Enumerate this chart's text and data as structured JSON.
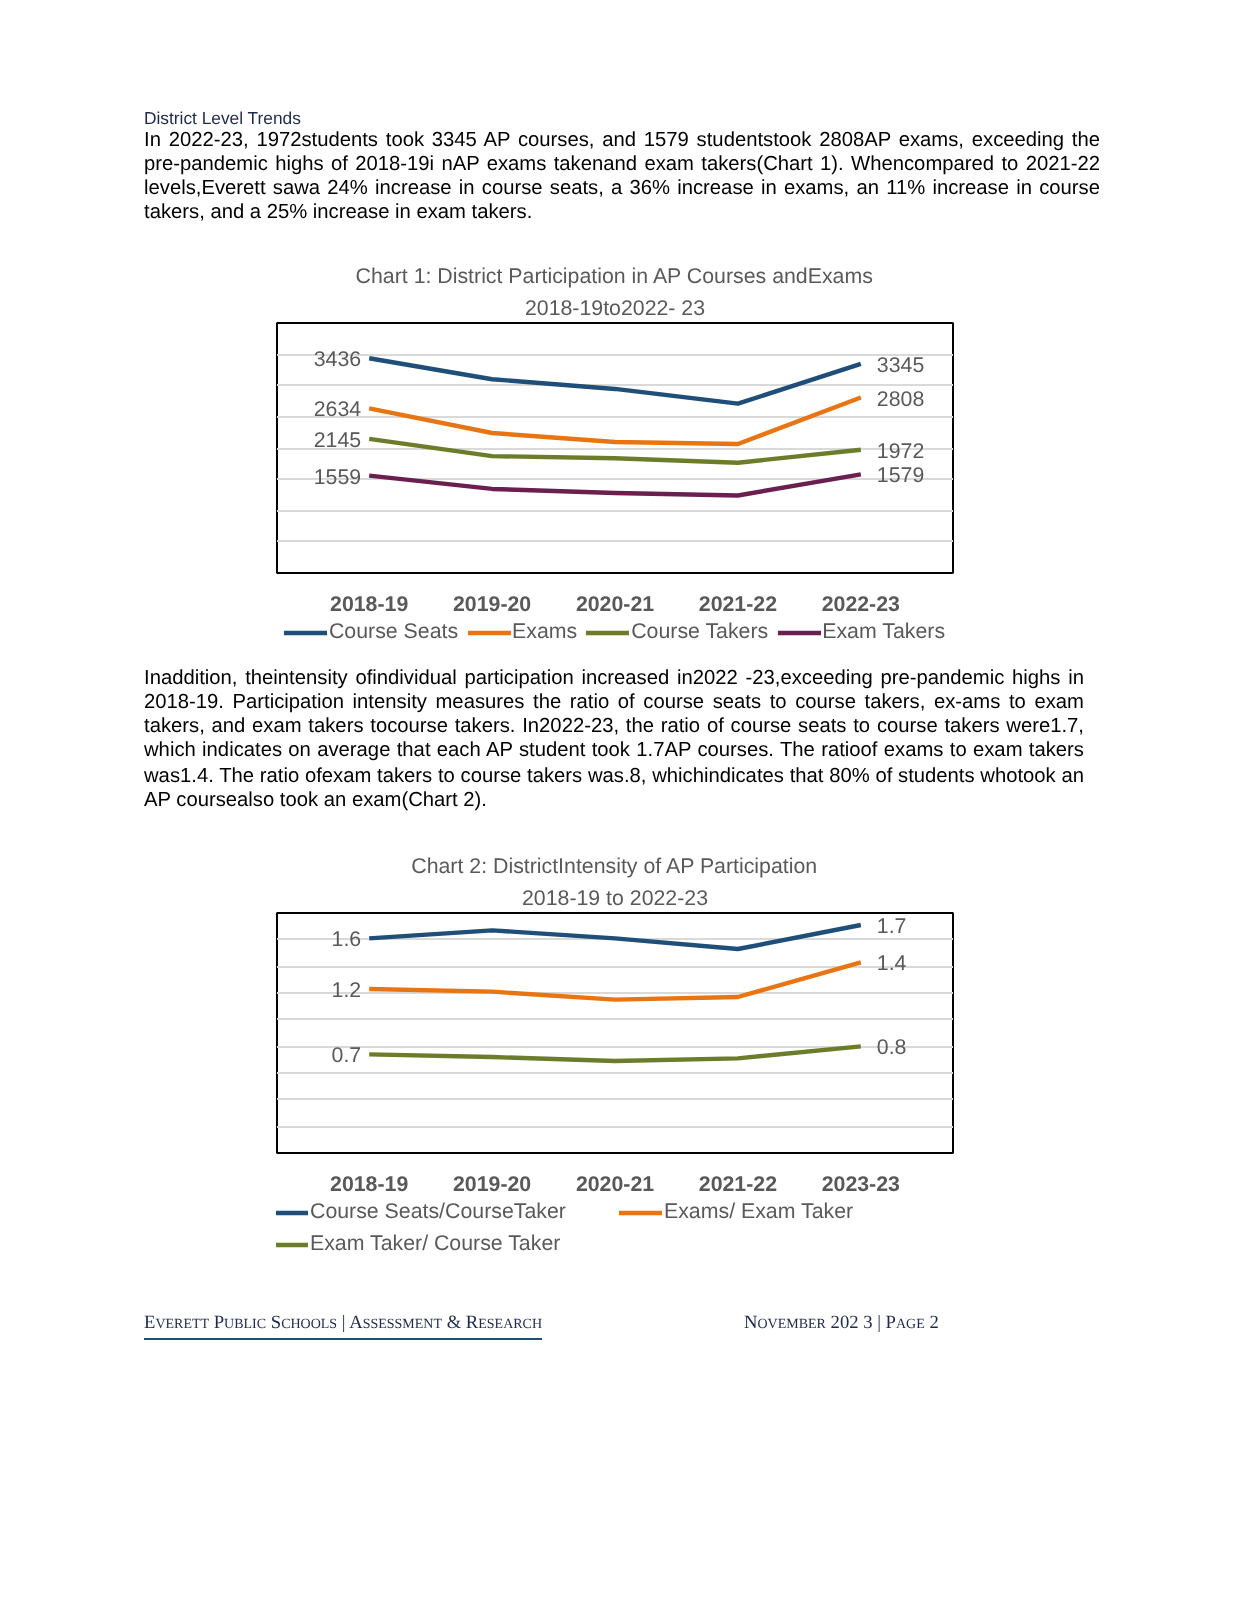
{
  "chart_data": [
    {
      "type": "line",
      "title": "Chart 1: District Participation in AP Courses andExams",
      "subtitle": "2018-19to2022- 23",
      "annotations": [
        "District Level Trends",
        "In 2022-23, 1972students took 3345 AP courses, and 1579 studentstook 2808AP exams, exceeding the pre-pandemic highs of 2018-19i nAP exams takenand exam takers(Chart 1). Whencompared to 2021-22 levels,Everett sawa 24% increase in course seats, a 36% increase in exams, an 11% increase in course takers, and a 25% increase in exam takers."
      ],
      "categories": [
        "2018-19",
        "2019-20",
        "2020-21",
        "2021-22",
        "2022-23"
      ],
      "ylim": [
        0,
        4000
      ],
      "yticks": [
        {
          "value": 0,
          "label": null
        },
        {
          "value": 500,
          "label": null
        },
        {
          "value": 1000,
          "label": null
        },
        {
          "value": 1500,
          "label": null
        },
        {
          "value": 2000,
          "label": null
        },
        {
          "value": 2500,
          "label": null
        },
        {
          "value": 3000,
          "label": null
        },
        {
          "value": 3500,
          "label": null
        },
        {
          "value": 4000,
          "label": null
        }
      ],
      "tick_labels": "x",
      "grid": "y",
      "legend": "bottom",
      "marker": "none",
      "line_style": "solid",
      "series": [
        {
          "name": "Course Seats",
          "color": "#1f4e79",
          "values": [
            3436,
            3100,
            2945,
            2710,
            3345
          ],
          "value_labels": [
            "3436",
            null,
            null,
            null,
            "3345"
          ]
        },
        {
          "name": "Exams",
          "color": "#e87511",
          "values": [
            2634,
            2240,
            2095,
            2065,
            2808
          ],
          "value_labels": [
            "2634",
            null,
            null,
            null,
            "2808"
          ]
        },
        {
          "name": "Course Takers",
          "color": "#6b7d2a",
          "values": [
            2145,
            1870,
            1835,
            1765,
            1972
          ],
          "value_labels": [
            "2145",
            null,
            null,
            null,
            "1972"
          ]
        },
        {
          "name": "Exam Takers",
          "color": "#6b1f4f",
          "values": [
            1559,
            1345,
            1280,
            1240,
            1579
          ],
          "value_labels": [
            "1559",
            null,
            null,
            null,
            "1579"
          ]
        }
      ]
    },
    {
      "type": "line",
      "title": "Chart 2: DistrictIntensity of AP Participation",
      "subtitle": "2018-19 to 2022-23",
      "annotations": [
        "Inaddition, theintensity ofindividual participation increased in2022 -23,exceeding pre-pandemic highs in 2018-19. Participation intensity measures the ratio of course seats to course takers, ex-ams to exam takers, and exam takers tocourse takers. In2022-23, the ratio of course seats to course takers were1.7, which indicates on average that each AP student took 1.7AP courses. The ratioof exams to exam takers was1.4. The ratio ofexam takers to course takers was.8, whichindicates that 80% of students whotook an AP coursealso took an exam(Chart 2).",
        "Everett Public Schools | Assessment & Research",
        "November 202 3 | Page 2"
      ],
      "categories": [
        "2018-19",
        "2019-20",
        "2020-21",
        "2021-22",
        "2023-23"
      ],
      "ylim": [
        0,
        1.8
      ],
      "yticks": [
        {
          "value": 0,
          "label": null
        },
        {
          "value": 0.2,
          "label": null
        },
        {
          "value": 0.4,
          "label": null
        },
        {
          "value": 0.6,
          "label": null
        },
        {
          "value": 0.8,
          "label": null
        },
        {
          "value": 1.0,
          "label": null
        },
        {
          "value": 1.2,
          "label": null
        },
        {
          "value": 1.4,
          "label": null
        },
        {
          "value": 1.6,
          "label": null
        },
        {
          "value": 1.8,
          "label": null
        }
      ],
      "tick_labels": "x",
      "grid": "y",
      "legend": "bottom",
      "marker": "none",
      "line_style": "solid",
      "series": [
        {
          "name": "Course Seats/CourseTaker",
          "color": "#1f4e79",
          "values": [
            1.61,
            1.67,
            1.61,
            1.53,
            1.71
          ],
          "value_labels": [
            "1.6",
            null,
            null,
            null,
            "1.7"
          ]
        },
        {
          "name": "Exams/ Exam Taker",
          "color": "#e87511",
          "values": [
            1.23,
            1.21,
            1.15,
            1.17,
            1.43
          ],
          "value_labels": [
            "1.2",
            null,
            null,
            null,
            "1.4"
          ]
        },
        {
          "name": "Exam Taker/ Course Taker",
          "color": "#6b7d2a",
          "values": [
            0.74,
            0.72,
            0.69,
            0.71,
            0.8
          ],
          "value_labels": [
            "0.7",
            null,
            null,
            null,
            "0.8"
          ]
        }
      ]
    }
  ]
}
